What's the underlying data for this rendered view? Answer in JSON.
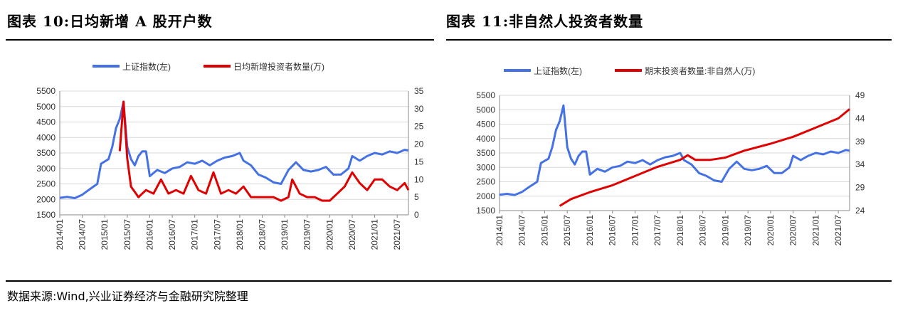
{
  "figure1": {
    "title": "图表 10:日均新增 A 股开户数",
    "chart_data": {
      "type": "line",
      "x_ticks": [
        "2014/01",
        "2014/07",
        "2015/01",
        "2015/07",
        "2016/01",
        "2016/07",
        "2017/01",
        "2017/07",
        "2018/01",
        "2018/07",
        "2019/01",
        "2019/07",
        "2020/01",
        "2020/07",
        "2021/01",
        "2021/07"
      ],
      "x_range": [
        "2014/01",
        "2021/10"
      ],
      "y_left": {
        "range": [
          1500,
          5500
        ],
        "ticks": [
          1500,
          2000,
          2500,
          3000,
          3500,
          4000,
          4500,
          5000,
          5500
        ]
      },
      "y_right": {
        "range": [
          0,
          35
        ],
        "ticks": [
          0,
          5,
          10,
          15,
          20,
          25,
          30,
          35
        ]
      },
      "legend_position": "top-center",
      "series": [
        {
          "name": "上证指数(左)",
          "axis": "left",
          "color": "#4472E4",
          "points": [
            [
              "2014/01",
              2050
            ],
            [
              "2014/03",
              2080
            ],
            [
              "2014/05",
              2040
            ],
            [
              "2014/07",
              2150
            ],
            [
              "2014/09",
              2330
            ],
            [
              "2014/11",
              2500
            ],
            [
              "2014/12",
              3150
            ],
            [
              "2015/02",
              3300
            ],
            [
              "2015/03",
              3700
            ],
            [
              "2015/04",
              4300
            ],
            [
              "2015/05",
              4600
            ],
            [
              "2015/06",
              5150
            ],
            [
              "2015/07",
              3700
            ],
            [
              "2015/08",
              3300
            ],
            [
              "2015/09",
              3100
            ],
            [
              "2015/10",
              3400
            ],
            [
              "2015/11",
              3550
            ],
            [
              "2015/12",
              3550
            ],
            [
              "2016/01",
              2750
            ],
            [
              "2016/03",
              2950
            ],
            [
              "2016/05",
              2850
            ],
            [
              "2016/07",
              3000
            ],
            [
              "2016/09",
              3050
            ],
            [
              "2016/11",
              3200
            ],
            [
              "2017/01",
              3150
            ],
            [
              "2017/03",
              3250
            ],
            [
              "2017/05",
              3100
            ],
            [
              "2017/07",
              3250
            ],
            [
              "2017/09",
              3350
            ],
            [
              "2017/11",
              3400
            ],
            [
              "2018/01",
              3500
            ],
            [
              "2018/02",
              3250
            ],
            [
              "2018/04",
              3100
            ],
            [
              "2018/06",
              2800
            ],
            [
              "2018/08",
              2700
            ],
            [
              "2018/10",
              2550
            ],
            [
              "2018/12",
              2500
            ],
            [
              "2019/02",
              2950
            ],
            [
              "2019/04",
              3200
            ],
            [
              "2019/06",
              2950
            ],
            [
              "2019/08",
              2900
            ],
            [
              "2019/10",
              2950
            ],
            [
              "2019/12",
              3050
            ],
            [
              "2020/02",
              2800
            ],
            [
              "2020/04",
              2800
            ],
            [
              "2020/06",
              3000
            ],
            [
              "2020/07",
              3400
            ],
            [
              "2020/09",
              3250
            ],
            [
              "2020/11",
              3400
            ],
            [
              "2021/01",
              3500
            ],
            [
              "2021/03",
              3450
            ],
            [
              "2021/05",
              3550
            ],
            [
              "2021/07",
              3500
            ],
            [
              "2021/09",
              3600
            ],
            [
              "2021/10",
              3580
            ]
          ]
        },
        {
          "name": "日均新增投资者数量(万)",
          "axis": "right",
          "color": "#E00000",
          "points": [
            [
              "2015/05",
              18
            ],
            [
              "2015/06",
              32
            ],
            [
              "2015/07",
              16
            ],
            [
              "2015/08",
              8
            ],
            [
              "2015/10",
              5
            ],
            [
              "2015/12",
              7
            ],
            [
              "2016/02",
              6
            ],
            [
              "2016/04",
              10
            ],
            [
              "2016/06",
              6
            ],
            [
              "2016/08",
              7
            ],
            [
              "2016/10",
              6
            ],
            [
              "2016/12",
              11
            ],
            [
              "2017/02",
              7
            ],
            [
              "2017/04",
              6
            ],
            [
              "2017/06",
              12
            ],
            [
              "2017/08",
              6
            ],
            [
              "2017/10",
              7
            ],
            [
              "2017/12",
              6
            ],
            [
              "2018/02",
              8
            ],
            [
              "2018/04",
              5
            ],
            [
              "2018/06",
              5
            ],
            [
              "2018/08",
              5
            ],
            [
              "2018/10",
              5
            ],
            [
              "2018/12",
              4
            ],
            [
              "2019/02",
              5
            ],
            [
              "2019/03",
              10
            ],
            [
              "2019/05",
              6
            ],
            [
              "2019/07",
              5
            ],
            [
              "2019/09",
              5
            ],
            [
              "2019/11",
              4
            ],
            [
              "2020/01",
              4
            ],
            [
              "2020/03",
              6
            ],
            [
              "2020/05",
              8
            ],
            [
              "2020/07",
              12
            ],
            [
              "2020/09",
              9
            ],
            [
              "2020/11",
              7
            ],
            [
              "2021/01",
              10
            ],
            [
              "2021/03",
              10
            ],
            [
              "2021/05",
              8
            ],
            [
              "2021/07",
              7
            ],
            [
              "2021/09",
              9
            ],
            [
              "2021/10",
              7
            ]
          ]
        }
      ]
    }
  },
  "figure2": {
    "title": "图表 11:非自然人投资者数量",
    "chart_data": {
      "type": "line",
      "x_ticks": [
        "2014/01",
        "2014/07",
        "2015/01",
        "2015/07",
        "2016/01",
        "2016/07",
        "2017/01",
        "2017/07",
        "2018/01",
        "2018/07",
        "2019/01",
        "2019/07",
        "2020/01",
        "2020/07",
        "2021/01",
        "2021/07"
      ],
      "x_range": [
        "2014/01",
        "2021/10"
      ],
      "y_left": {
        "range": [
          1500,
          5500
        ],
        "ticks": [
          1500,
          2000,
          2500,
          3000,
          3500,
          4000,
          4500,
          5000,
          5500
        ]
      },
      "y_right": {
        "range": [
          24,
          49
        ],
        "ticks": [
          24,
          29,
          34,
          39,
          44,
          49
        ]
      },
      "legend_position": "top-center",
      "series": [
        {
          "name": "上证指数(左)",
          "axis": "left",
          "color": "#4472E4",
          "points": [
            [
              "2014/01",
              2050
            ],
            [
              "2014/03",
              2080
            ],
            [
              "2014/05",
              2040
            ],
            [
              "2014/07",
              2150
            ],
            [
              "2014/09",
              2330
            ],
            [
              "2014/11",
              2500
            ],
            [
              "2014/12",
              3150
            ],
            [
              "2015/02",
              3300
            ],
            [
              "2015/03",
              3700
            ],
            [
              "2015/04",
              4300
            ],
            [
              "2015/05",
              4600
            ],
            [
              "2015/06",
              5150
            ],
            [
              "2015/07",
              3700
            ],
            [
              "2015/08",
              3300
            ],
            [
              "2015/09",
              3100
            ],
            [
              "2015/10",
              3400
            ],
            [
              "2015/11",
              3550
            ],
            [
              "2015/12",
              3550
            ],
            [
              "2016/01",
              2750
            ],
            [
              "2016/03",
              2950
            ],
            [
              "2016/05",
              2850
            ],
            [
              "2016/07",
              3000
            ],
            [
              "2016/09",
              3050
            ],
            [
              "2016/11",
              3200
            ],
            [
              "2017/01",
              3150
            ],
            [
              "2017/03",
              3250
            ],
            [
              "2017/05",
              3100
            ],
            [
              "2017/07",
              3250
            ],
            [
              "2017/09",
              3350
            ],
            [
              "2017/11",
              3400
            ],
            [
              "2018/01",
              3500
            ],
            [
              "2018/02",
              3250
            ],
            [
              "2018/04",
              3100
            ],
            [
              "2018/06",
              2800
            ],
            [
              "2018/08",
              2700
            ],
            [
              "2018/10",
              2550
            ],
            [
              "2018/12",
              2500
            ],
            [
              "2019/02",
              2950
            ],
            [
              "2019/04",
              3200
            ],
            [
              "2019/06",
              2950
            ],
            [
              "2019/08",
              2900
            ],
            [
              "2019/10",
              2950
            ],
            [
              "2019/12",
              3050
            ],
            [
              "2020/02",
              2800
            ],
            [
              "2020/04",
              2800
            ],
            [
              "2020/06",
              3000
            ],
            [
              "2020/07",
              3400
            ],
            [
              "2020/09",
              3250
            ],
            [
              "2020/11",
              3400
            ],
            [
              "2021/01",
              3500
            ],
            [
              "2021/03",
              3450
            ],
            [
              "2021/05",
              3550
            ],
            [
              "2021/07",
              3500
            ],
            [
              "2021/09",
              3600
            ],
            [
              "2021/10",
              3580
            ]
          ]
        },
        {
          "name": "期末投资者数量:非自然人(万)",
          "axis": "right",
          "color": "#E00000",
          "points": [
            [
              "2015/05",
              25
            ],
            [
              "2015/08",
              26.5
            ],
            [
              "2016/01",
              28
            ],
            [
              "2016/07",
              29.5
            ],
            [
              "2017/01",
              31.5
            ],
            [
              "2017/07",
              33.5
            ],
            [
              "2018/01",
              35
            ],
            [
              "2018/03",
              36
            ],
            [
              "2018/05",
              35
            ],
            [
              "2018/09",
              35
            ],
            [
              "2019/01",
              35.5
            ],
            [
              "2019/06",
              37
            ],
            [
              "2020/01",
              38.5
            ],
            [
              "2020/07",
              40
            ],
            [
              "2021/01",
              42
            ],
            [
              "2021/07",
              44
            ],
            [
              "2021/10",
              46
            ]
          ]
        }
      ]
    }
  },
  "source_note": "数据来源:Wind,兴业证券经济与金融研究院整理"
}
